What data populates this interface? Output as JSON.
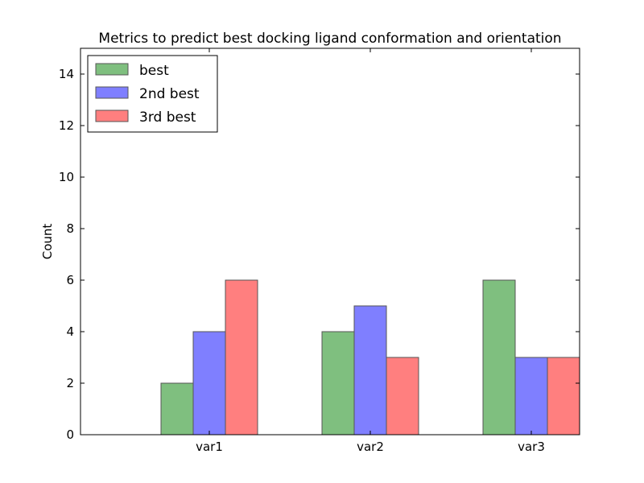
{
  "chart_data": {
    "type": "bar",
    "title": "Metrics to predict best docking ligand conformation and orientation",
    "xlabel": "",
    "ylabel": "Count",
    "categories": [
      "var1",
      "var2",
      "var3"
    ],
    "ylim": [
      0,
      15
    ],
    "yticks": [
      0,
      2,
      4,
      6,
      8,
      10,
      12,
      14
    ],
    "grid": false,
    "legend_position": "top-left",
    "series": [
      {
        "name": "best",
        "values": [
          2,
          4,
          6
        ],
        "color": "#7fbf7f"
      },
      {
        "name": "2nd best",
        "values": [
          4,
          5,
          3
        ],
        "color": "#7f7fff"
      },
      {
        "name": "3rd best",
        "values": [
          6,
          3,
          3
        ],
        "color": "#ff7f7f"
      }
    ]
  }
}
